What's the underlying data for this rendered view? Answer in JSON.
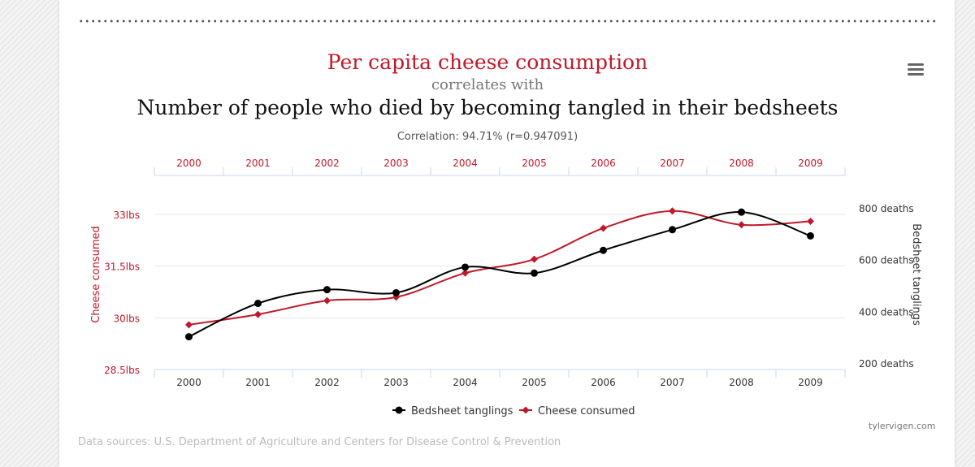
{
  "header": {
    "title_top": "Per capita cheese consumption",
    "connector": "correlates with",
    "title_bottom": "Number of people who died by becoming tangled in their bedsheets",
    "correlation": "Correlation: 94.71% (r=0.947091)"
  },
  "menu_icon": "hamburger-menu-icon",
  "footer": {
    "sources": "Data sources: U.S. Department of Agriculture and Centers for Disease Control & Prevention",
    "credit": "tylervigen.com"
  },
  "chart_data": {
    "type": "line",
    "categories": [
      "2000",
      "2001",
      "2002",
      "2003",
      "2004",
      "2005",
      "2006",
      "2007",
      "2008",
      "2009"
    ],
    "series": [
      {
        "name": "Bedsheet tanglings",
        "axis": "right",
        "color": "#000000",
        "marker": "circle",
        "values": [
          327,
          456,
          509,
          497,
          596,
          573,
          661,
          741,
          809,
          717
        ]
      },
      {
        "name": "Cheese consumed",
        "axis": "left",
        "color": "#c0182a",
        "marker": "diamond",
        "values": [
          29.8,
          30.1,
          30.5,
          30.6,
          31.3,
          31.7,
          32.6,
          33.1,
          32.7,
          32.8
        ]
      }
    ],
    "left_axis": {
      "label": "Cheese consumed",
      "ticks": [
        "28.5lbs",
        "30lbs",
        "31.5lbs",
        "33lbs"
      ],
      "tick_values": [
        28.5,
        30,
        31.5,
        33
      ],
      "range": [
        28.5,
        33
      ]
    },
    "right_axis": {
      "label": "Bedsheet tanglings",
      "ticks": [
        "200 deaths",
        "400 deaths",
        "600 deaths",
        "800 deaths"
      ],
      "tick_values": [
        200,
        400,
        600,
        800
      ],
      "range": [
        200,
        800
      ]
    },
    "legend": [
      "Bedsheet tanglings",
      "Cheese consumed"
    ],
    "legend_position": "bottom",
    "grid": true
  }
}
